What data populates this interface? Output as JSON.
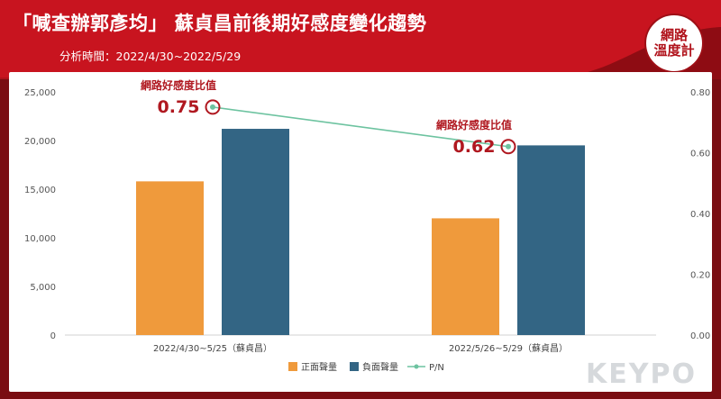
{
  "header": {
    "title": "「喊查辦郭彥均」 蘇貞昌前後期好感度變化趨勢",
    "subtitle": "分析時間：2022/4/30~2022/5/29",
    "logo_lines": [
      "網路",
      "溫度計"
    ]
  },
  "watermark": "KEYPO",
  "colors": {
    "positive": "#ef9a3c",
    "negative": "#336584",
    "pn": "#6dc3a0",
    "annotation": "#b01820",
    "header": "#c8141f"
  },
  "chart_data": {
    "type": "bar",
    "categories": [
      "2022/4/30~5/25（蘇貞昌）",
      "2022/5/26~5/29（蘇貞昌）"
    ],
    "series": [
      {
        "name": "正面聲量",
        "type": "bar",
        "axis": "left",
        "values": [
          15800,
          12000
        ]
      },
      {
        "name": "負面聲量",
        "type": "bar",
        "axis": "left",
        "values": [
          21200,
          19500
        ]
      },
      {
        "name": "P/N",
        "type": "line",
        "axis": "right",
        "values": [
          0.75,
          0.62
        ]
      }
    ],
    "y_left": {
      "ylim": [
        0,
        25000
      ],
      "ticks": [
        "0",
        "5,000",
        "10,000",
        "15,000",
        "20,000",
        "25,000"
      ]
    },
    "y_right": {
      "ylim": [
        0,
        0.8
      ],
      "ticks": [
        "0.00",
        "0.20",
        "0.40",
        "0.60",
        "0.80"
      ]
    },
    "annotations": [
      {
        "label": "網路好感度比值",
        "value": "0.75"
      },
      {
        "label": "網路好感度比值",
        "value": "0.62"
      }
    ],
    "legend": "bottom",
    "grid": false
  }
}
